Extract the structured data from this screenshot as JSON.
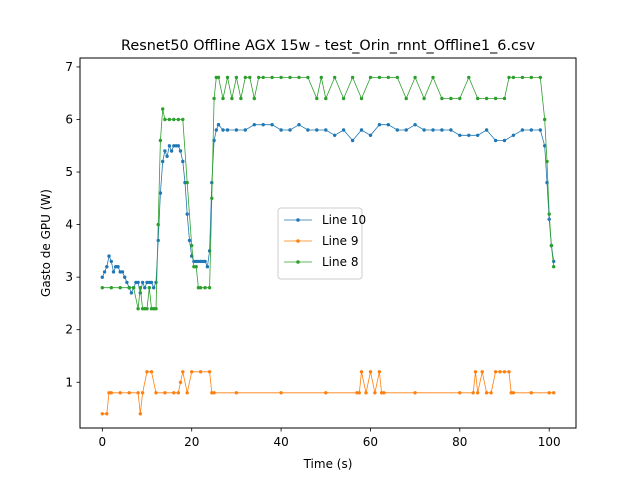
{
  "chart_data": {
    "type": "line",
    "title": "Resnet50 Offline AGX 15w - test_Orin_rnnt_Offline1_6.csv",
    "xlabel": "Time (s)",
    "ylabel": "Gasto de GPU (W)",
    "xlim": [
      -5,
      106
    ],
    "ylim": [
      0.13,
      7.17
    ],
    "xticks": [
      0,
      20,
      40,
      60,
      80,
      100
    ],
    "yticks": [
      1,
      2,
      3,
      4,
      5,
      6,
      7
    ],
    "grid": false,
    "legend_position": "center",
    "series": [
      {
        "name": "Line 10",
        "color": "#1f77b4",
        "x": [
          0,
          0.5,
          1,
          1.5,
          2,
          2.5,
          3,
          3.5,
          4,
          4.5,
          5,
          5.5,
          6,
          6.5,
          7,
          7.5,
          8,
          8.5,
          9,
          9.5,
          10,
          10.5,
          11,
          11.5,
          12,
          12.5,
          13,
          13.5,
          14,
          14.5,
          15,
          15.5,
          16,
          16.5,
          17,
          17.5,
          18,
          18.5,
          19,
          19.5,
          20,
          20.5,
          21,
          21.5,
          22,
          22.5,
          23,
          23.5,
          24,
          24.5,
          25,
          25.5,
          26,
          27,
          28,
          30,
          32,
          34,
          36,
          38,
          40,
          42,
          44,
          46,
          48,
          50,
          52,
          54,
          56,
          58,
          60,
          62,
          64,
          66,
          68,
          70,
          72,
          74,
          76,
          78,
          80,
          82,
          84,
          86,
          88,
          90,
          92,
          94,
          96,
          98,
          99,
          99.5,
          100,
          100.5,
          101
        ],
        "values": [
          3.0,
          3.1,
          3.2,
          3.4,
          3.3,
          3.1,
          3.2,
          3.2,
          3.1,
          3.1,
          3.0,
          2.9,
          2.8,
          2.7,
          2.8,
          2.9,
          2.9,
          2.7,
          2.9,
          2.8,
          2.9,
          2.9,
          2.9,
          2.8,
          2.9,
          3.7,
          4.6,
          5.2,
          5.4,
          5.3,
          5.5,
          5.4,
          5.5,
          5.5,
          5.5,
          5.4,
          5.2,
          4.8,
          4.2,
          3.7,
          3.4,
          3.3,
          3.3,
          3.3,
          3.3,
          3.3,
          3.3,
          3.2,
          3.5,
          4.8,
          5.6,
          5.8,
          5.9,
          5.8,
          5.8,
          5.8,
          5.8,
          5.9,
          5.9,
          5.9,
          5.8,
          5.8,
          5.9,
          5.8,
          5.8,
          5.8,
          5.7,
          5.8,
          5.6,
          5.8,
          5.7,
          5.9,
          5.9,
          5.8,
          5.8,
          5.9,
          5.8,
          5.8,
          5.8,
          5.8,
          5.7,
          5.7,
          5.7,
          5.8,
          5.6,
          5.6,
          5.7,
          5.8,
          5.8,
          5.8,
          5.5,
          4.8,
          4.1,
          3.6,
          3.3
        ]
      },
      {
        "name": "Line 9",
        "color": "#ff7f0e",
        "x": [
          0,
          1,
          1.5,
          2,
          4,
          6,
          8,
          8.5,
          9,
          10,
          11,
          12,
          14,
          16,
          17,
          17.5,
          18,
          19,
          20,
          22,
          24,
          24.5,
          25,
          30,
          40,
          50,
          57,
          57.5,
          58,
          59,
          60,
          61,
          62,
          62.5,
          63,
          70,
          80,
          83,
          83.5,
          84,
          85,
          86,
          87,
          88,
          89,
          90,
          91,
          91.5,
          92,
          96,
          100,
          101
        ],
        "values": [
          0.4,
          0.4,
          0.8,
          0.8,
          0.8,
          0.8,
          0.8,
          0.4,
          0.8,
          1.2,
          1.2,
          0.8,
          0.8,
          0.8,
          0.8,
          1.0,
          1.2,
          0.8,
          1.2,
          1.2,
          1.2,
          0.8,
          0.8,
          0.8,
          0.8,
          0.8,
          0.8,
          0.8,
          1.2,
          0.8,
          1.2,
          0.8,
          1.2,
          0.8,
          0.8,
          0.8,
          0.8,
          0.8,
          1.2,
          0.8,
          1.2,
          0.8,
          0.8,
          1.2,
          1.2,
          1.2,
          1.2,
          0.8,
          0.8,
          0.8,
          0.8,
          0.8
        ]
      },
      {
        "name": "Line 8",
        "color": "#2ca02c",
        "x": [
          0,
          2,
          4,
          6,
          7,
          8,
          8.5,
          9,
          9.5,
          10,
          10.5,
          11,
          11.5,
          12,
          12.5,
          13,
          13.5,
          14,
          15,
          16,
          17,
          18,
          19,
          20,
          20.5,
          21,
          21.5,
          22,
          23,
          24,
          24.5,
          25,
          25.5,
          26,
          27,
          28,
          29,
          30,
          31,
          32,
          33,
          34,
          35,
          36,
          38,
          40,
          42,
          44,
          46,
          48,
          49,
          50,
          52,
          54,
          56,
          58,
          60,
          62,
          64,
          66,
          68,
          70,
          72,
          74,
          76,
          78,
          80,
          82,
          84,
          86,
          88,
          90,
          91,
          92,
          94,
          96,
          98,
          99,
          99.5,
          100,
          100.5,
          101
        ],
        "values": [
          2.8,
          2.8,
          2.8,
          2.8,
          2.8,
          2.4,
          2.8,
          2.4,
          2.4,
          2.4,
          2.8,
          2.4,
          2.4,
          2.4,
          4.0,
          5.6,
          6.2,
          6.0,
          6.0,
          6.0,
          6.0,
          6.0,
          4.8,
          3.6,
          3.2,
          3.2,
          2.8,
          2.8,
          2.8,
          2.8,
          4.5,
          6.4,
          6.8,
          6.8,
          6.4,
          6.8,
          6.4,
          6.8,
          6.4,
          6.8,
          6.8,
          6.4,
          6.8,
          6.8,
          6.8,
          6.8,
          6.8,
          6.8,
          6.8,
          6.4,
          6.8,
          6.4,
          6.8,
          6.4,
          6.8,
          6.4,
          6.8,
          6.8,
          6.8,
          6.8,
          6.4,
          6.8,
          6.4,
          6.8,
          6.4,
          6.4,
          6.4,
          6.8,
          6.4,
          6.4,
          6.4,
          6.4,
          6.8,
          6.8,
          6.8,
          6.8,
          6.8,
          6.0,
          5.2,
          4.2,
          3.6,
          3.2
        ]
      }
    ]
  }
}
